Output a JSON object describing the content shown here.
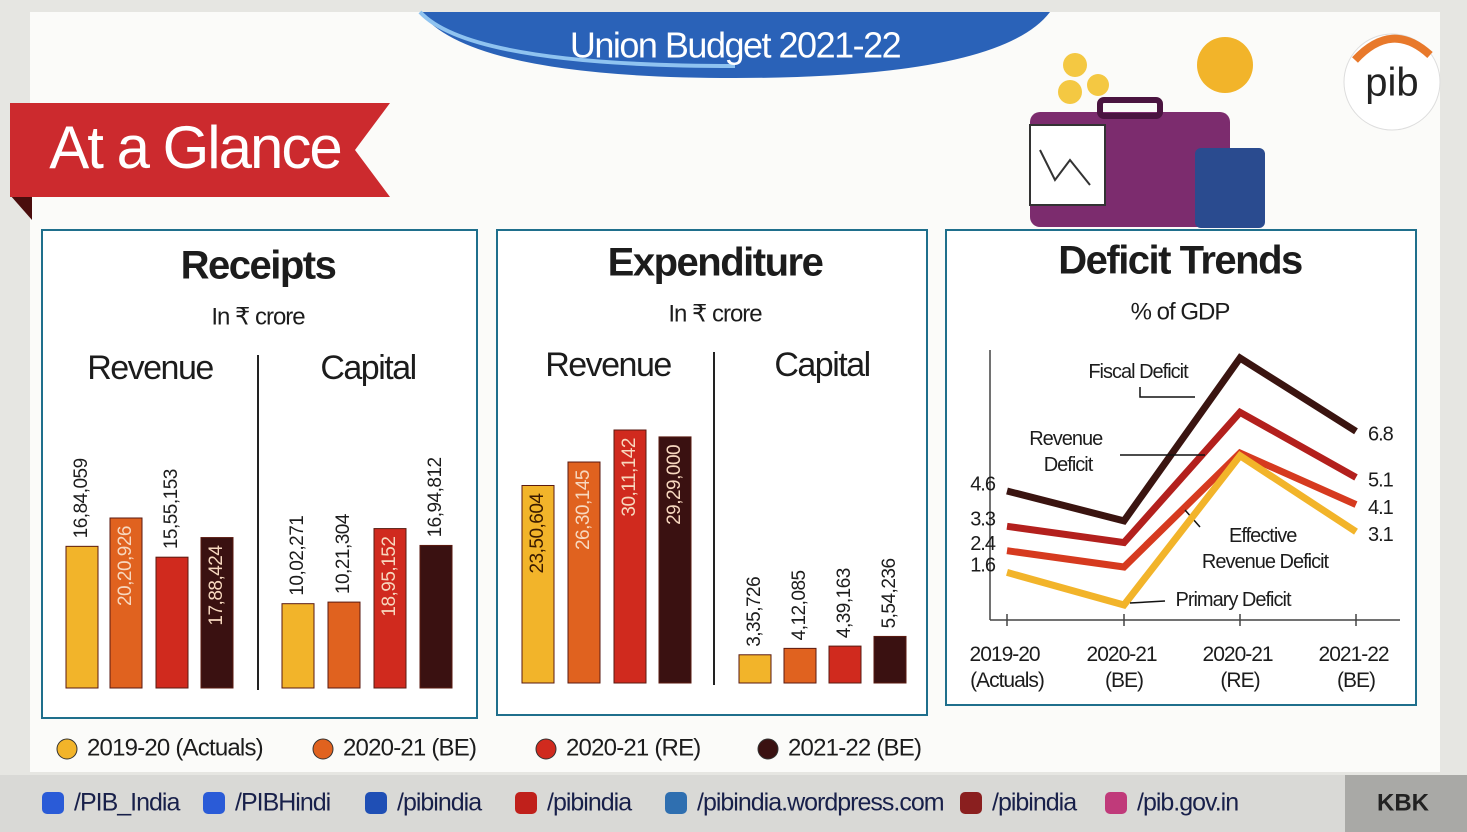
{
  "header": {
    "title": "Union Budget 2021-22",
    "banner": "At a Glance",
    "logo": "pib"
  },
  "legend": [
    {
      "name": "2019-20 (Actuals)",
      "color": "#f2b42a"
    },
    {
      "name": "2020-21 (BE)",
      "color": "#e0621f"
    },
    {
      "name": "2020-21 (RE)",
      "color": "#d02a1e"
    },
    {
      "name": "2021-22 (BE)",
      "color": "#3a1111"
    }
  ],
  "chart_data": [
    {
      "type": "bar",
      "title": "Receipts",
      "subtitle": "In ₹ crore",
      "categories": [
        "Revenue",
        "Capital"
      ],
      "series": [
        {
          "values": [
            1684059,
            1002271
          ],
          "value_labels": [
            "16,84,059",
            "10,02,271"
          ]
        },
        {
          "values": [
            2020926,
            1021304
          ],
          "value_labels": [
            "20,20,926",
            "10,21,304"
          ]
        },
        {
          "values": [
            1555153,
            1895152
          ],
          "value_labels": [
            "15,55,153",
            "18,95,152"
          ]
        },
        {
          "values": [
            1788424,
            1694812
          ],
          "value_labels": [
            "17,88,424",
            "16,94,812"
          ]
        }
      ]
    },
    {
      "type": "bar",
      "title": "Expenditure",
      "subtitle": "In ₹ crore",
      "categories": [
        "Revenue",
        "Capital"
      ],
      "series": [
        {
          "values": [
            2350604,
            335726
          ],
          "value_labels": [
            "23,50,604",
            "3,35,726"
          ]
        },
        {
          "values": [
            2630145,
            412085
          ],
          "value_labels": [
            "26,30,145",
            "4,12,085"
          ]
        },
        {
          "values": [
            3011142,
            439163
          ],
          "value_labels": [
            "30,11,142",
            "4,39,163"
          ]
        },
        {
          "values": [
            2929000,
            554236
          ],
          "value_labels": [
            "29,29,000",
            "5,54,236"
          ]
        }
      ]
    },
    {
      "type": "line",
      "title": "Deficit Trends",
      "subtitle": "% of GDP",
      "categories": [
        "2019-20 (Actuals)",
        "2020-21 (BE)",
        "2020-21 (RE)",
        "2021-22 (BE)"
      ],
      "series": [
        {
          "name": "Fiscal Deficit",
          "color": "#3a1410",
          "values": [
            4.6,
            3.5,
            9.5,
            6.8
          ]
        },
        {
          "name": "Revenue Deficit",
          "color": "#b3201d",
          "values": [
            3.3,
            2.7,
            7.5,
            5.1
          ]
        },
        {
          "name": "Effective Revenue Deficit",
          "color": "#d63a1f",
          "values": [
            2.4,
            1.8,
            6.0,
            4.1
          ]
        },
        {
          "name": "Primary Deficit",
          "color": "#f2b42a",
          "values": [
            1.6,
            0.4,
            5.9,
            3.1
          ]
        }
      ]
    }
  ],
  "footer": {
    "links": [
      "/PIB_India",
      "/PIBHindi",
      "/pibindia",
      "/pibindia",
      "/pibindia.wordpress.com",
      "/pibindia",
      "/pib.gov.in"
    ],
    "credit": "KBK"
  }
}
